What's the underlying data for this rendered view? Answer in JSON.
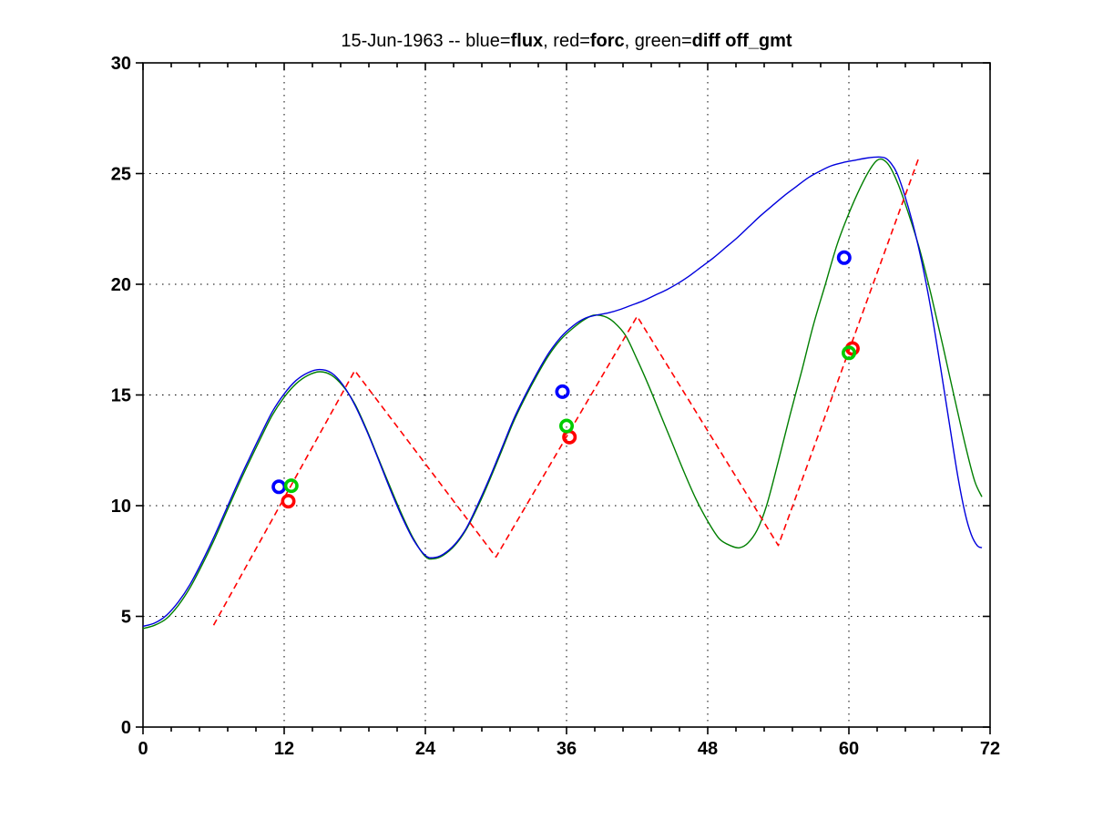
{
  "window": {
    "background": "#ffffff"
  },
  "chart_data": {
    "type": "line",
    "title_text": "15-Jun-1963 -- blue=flux, red=forc, green=diff off_gmt",
    "title_parts": [
      {
        "text": "15-Jun-1963 -- blue=",
        "bold": false
      },
      {
        "text": "flux",
        "bold": true
      },
      {
        "text": ", red=",
        "bold": false
      },
      {
        "text": "forc",
        "bold": true
      },
      {
        "text": ", green=",
        "bold": false
      },
      {
        "text": "diff off_gmt",
        "bold": true
      }
    ],
    "xlabel": "",
    "ylabel": "",
    "xlim": [
      0,
      72
    ],
    "ylim": [
      0,
      30
    ],
    "xticks": [
      0,
      12,
      24,
      36,
      48,
      60,
      72
    ],
    "yticks": [
      0,
      5,
      10,
      15,
      20,
      25,
      30
    ],
    "x_minor_step": 2.4,
    "grid": "dotted",
    "grid_color": "#000000",
    "axis_color": "#000000",
    "legend_position": "none (legend encoded in title)",
    "series": [
      {
        "name": "diff",
        "color": "#007f00",
        "style": "solid",
        "smooth": true,
        "width": 1.4,
        "points": [
          [
            0,
            4.45
          ],
          [
            1,
            4.6
          ],
          [
            2,
            4.9
          ],
          [
            3,
            5.5
          ],
          [
            4,
            6.3
          ],
          [
            5,
            7.3
          ],
          [
            6,
            8.4
          ],
          [
            7,
            9.6
          ],
          [
            8,
            10.8
          ],
          [
            9,
            11.95
          ],
          [
            10,
            13.05
          ],
          [
            11,
            14.1
          ],
          [
            12,
            14.9
          ],
          [
            13,
            15.5
          ],
          [
            14,
            15.88
          ],
          [
            15,
            16.05
          ],
          [
            16,
            15.9
          ],
          [
            17,
            15.4
          ],
          [
            18,
            14.6
          ],
          [
            19,
            13.45
          ],
          [
            20,
            12.15
          ],
          [
            21,
            10.85
          ],
          [
            22,
            9.6
          ],
          [
            23,
            8.5
          ],
          [
            24,
            7.7
          ],
          [
            24.7,
            7.6
          ],
          [
            25.5,
            7.75
          ],
          [
            26.5,
            8.2
          ],
          [
            27.5,
            8.95
          ],
          [
            28.5,
            10.0
          ],
          [
            29.5,
            11.2
          ],
          [
            30.5,
            12.5
          ],
          [
            31.5,
            13.8
          ],
          [
            32.5,
            14.9
          ],
          [
            33.5,
            15.9
          ],
          [
            34.5,
            16.8
          ],
          [
            35.5,
            17.5
          ],
          [
            36.5,
            18.0
          ],
          [
            37.5,
            18.4
          ],
          [
            38.3,
            18.6
          ],
          [
            39.2,
            18.55
          ],
          [
            40,
            18.3
          ],
          [
            41,
            17.7
          ],
          [
            42,
            16.6
          ],
          [
            43,
            15.4
          ],
          [
            44,
            14.1
          ],
          [
            45,
            12.8
          ],
          [
            46,
            11.5
          ],
          [
            47,
            10.3
          ],
          [
            48,
            9.3
          ],
          [
            49,
            8.5
          ],
          [
            50,
            8.18
          ],
          [
            50.7,
            8.1
          ],
          [
            51.4,
            8.3
          ],
          [
            52.2,
            8.9
          ],
          [
            53,
            10.0
          ],
          [
            54,
            12.0
          ],
          [
            55,
            14.1
          ],
          [
            56,
            16.1
          ],
          [
            57,
            18.2
          ],
          [
            58,
            20.0
          ],
          [
            59,
            21.8
          ],
          [
            60,
            23.2
          ],
          [
            61,
            24.4
          ],
          [
            61.8,
            25.2
          ],
          [
            62.4,
            25.6
          ],
          [
            62.9,
            25.63
          ],
          [
            63.5,
            25.3
          ],
          [
            64.2,
            24.5
          ],
          [
            65,
            23.3
          ],
          [
            66,
            21.6
          ],
          [
            67,
            19.5
          ],
          [
            68,
            17.2
          ],
          [
            69,
            14.8
          ],
          [
            70,
            12.5
          ],
          [
            70.7,
            11.1
          ],
          [
            71.3,
            10.4
          ]
        ]
      },
      {
        "name": "flux",
        "color": "#0000dd",
        "style": "solid",
        "smooth": true,
        "width": 1.4,
        "points": [
          [
            0,
            4.55
          ],
          [
            1,
            4.7
          ],
          [
            2,
            5.05
          ],
          [
            3,
            5.65
          ],
          [
            4,
            6.45
          ],
          [
            5,
            7.45
          ],
          [
            6,
            8.55
          ],
          [
            7,
            9.75
          ],
          [
            8,
            10.95
          ],
          [
            9,
            12.1
          ],
          [
            10,
            13.2
          ],
          [
            11,
            14.25
          ],
          [
            12,
            15.05
          ],
          [
            13,
            15.65
          ],
          [
            14,
            16.0
          ],
          [
            15,
            16.15
          ],
          [
            16,
            16.0
          ],
          [
            17,
            15.45
          ],
          [
            18,
            14.55
          ],
          [
            19,
            13.4
          ],
          [
            20,
            12.1
          ],
          [
            21,
            10.75
          ],
          [
            22,
            9.5
          ],
          [
            23,
            8.45
          ],
          [
            24,
            7.75
          ],
          [
            24.7,
            7.65
          ],
          [
            25.5,
            7.8
          ],
          [
            26.5,
            8.25
          ],
          [
            27.5,
            9.0
          ],
          [
            28.5,
            10.1
          ],
          [
            29.5,
            11.3
          ],
          [
            30.5,
            12.6
          ],
          [
            31.5,
            13.9
          ],
          [
            32.5,
            15.0
          ],
          [
            33.5,
            16.0
          ],
          [
            34.5,
            16.9
          ],
          [
            35.5,
            17.6
          ],
          [
            36.5,
            18.1
          ],
          [
            37.5,
            18.45
          ],
          [
            38.5,
            18.6
          ],
          [
            39.5,
            18.7
          ],
          [
            40.5,
            18.85
          ],
          [
            41.5,
            19.05
          ],
          [
            42.5,
            19.25
          ],
          [
            43.5,
            19.5
          ],
          [
            44.5,
            19.75
          ],
          [
            45.5,
            20.05
          ],
          [
            46.5,
            20.4
          ],
          [
            47.5,
            20.8
          ],
          [
            48.5,
            21.2
          ],
          [
            49.5,
            21.65
          ],
          [
            50.5,
            22.1
          ],
          [
            51.5,
            22.6
          ],
          [
            52.5,
            23.1
          ],
          [
            53.5,
            23.55
          ],
          [
            54.5,
            24.0
          ],
          [
            55.5,
            24.4
          ],
          [
            56.5,
            24.8
          ],
          [
            57.5,
            25.1
          ],
          [
            58.5,
            25.35
          ],
          [
            59.5,
            25.5
          ],
          [
            60.5,
            25.6
          ],
          [
            61.5,
            25.7
          ],
          [
            62.5,
            25.75
          ],
          [
            63.1,
            25.7
          ],
          [
            63.6,
            25.45
          ],
          [
            64.1,
            25.0
          ],
          [
            64.7,
            24.1
          ],
          [
            65.4,
            22.8
          ],
          [
            66.2,
            21.0
          ],
          [
            67,
            18.8
          ],
          [
            67.8,
            16.2
          ],
          [
            68.6,
            13.5
          ],
          [
            69.3,
            11.2
          ],
          [
            69.9,
            9.6
          ],
          [
            70.4,
            8.7
          ],
          [
            70.9,
            8.2
          ],
          [
            71.3,
            8.1
          ]
        ]
      },
      {
        "name": "forc",
        "color": "#ff0000",
        "style": "dashed",
        "smooth": false,
        "width": 1.6,
        "points": [
          [
            6,
            4.6
          ],
          [
            18,
            16.1
          ],
          [
            30,
            7.68
          ],
          [
            42,
            18.55
          ],
          [
            54,
            8.2
          ],
          [
            66,
            25.8
          ]
        ]
      }
    ],
    "markers": [
      {
        "name": "flux-obs",
        "color": "#0000ff",
        "points": [
          [
            11.55,
            10.85
          ],
          [
            35.65,
            15.15
          ],
          [
            59.6,
            21.2
          ]
        ]
      },
      {
        "name": "forc-obs",
        "color": "#ff0000",
        "points": [
          [
            12.35,
            10.2
          ],
          [
            36.25,
            13.1
          ],
          [
            60.3,
            17.1
          ]
        ]
      },
      {
        "name": "diff-obs",
        "color": "#00cc00",
        "points": [
          [
            12.6,
            10.9
          ],
          [
            36.0,
            13.6
          ],
          [
            60.0,
            16.9
          ]
        ]
      }
    ]
  }
}
